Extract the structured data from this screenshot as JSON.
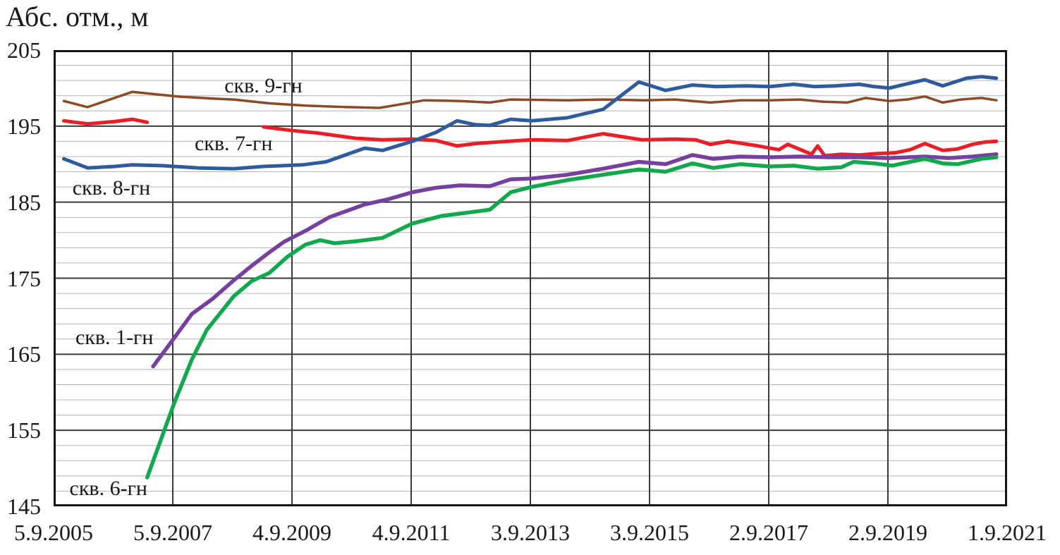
{
  "chart_data": {
    "type": "line",
    "title": "Абс. отм., м",
    "xlabel": "",
    "ylabel": "Абс. отм., м",
    "xlim": [
      2005.68,
      2021.68
    ],
    "ylim": [
      145,
      205
    ],
    "y_ticks": [
      205,
      195,
      185,
      175,
      165,
      155,
      145
    ],
    "y_minor_step": 2,
    "grid": {
      "major_color": "#3a3a3a",
      "minor_color": "#b3b3b3",
      "border_color": "#141414",
      "background": "#ffffff",
      "text_color": "#1a1a1a"
    },
    "x_ticks": [
      {
        "label": "5.9.2005",
        "x": 2005.68
      },
      {
        "label": "5.9.2007",
        "x": 2007.68
      },
      {
        "label": "4.9.2009",
        "x": 2009.68
      },
      {
        "label": "4.9.2011",
        "x": 2011.68
      },
      {
        "label": "3.9.2013",
        "x": 2013.68
      },
      {
        "label": "3.9.2015",
        "x": 2015.68
      },
      {
        "label": "2.9.2017",
        "x": 2017.68
      },
      {
        "label": "2.9.2019",
        "x": 2019.68
      },
      {
        "label": "1.9.2021",
        "x": 2021.68
      }
    ],
    "series": [
      {
        "id": "skv-9-gn",
        "name": "скв. 9-гн",
        "color": "#8C4A26",
        "width": 3.5,
        "label_pos": {
          "x": 2009.2,
          "y": 200.3
        },
        "segments": [
          [
            [
              2005.85,
              198.3
            ],
            [
              2006.25,
              197.5
            ],
            [
              2007.0,
              199.5
            ],
            [
              2007.75,
              198.9
            ],
            [
              2008.4,
              198.6
            ],
            [
              2008.7,
              198.5
            ],
            [
              2009.3,
              198.0
            ],
            [
              2009.9,
              197.7
            ],
            [
              2010.6,
              197.5
            ],
            [
              2011.15,
              197.4
            ],
            [
              2011.9,
              198.4
            ],
            [
              2012.5,
              198.3
            ],
            [
              2013.0,
              198.1
            ],
            [
              2013.35,
              198.5
            ],
            [
              2014.3,
              198.4
            ],
            [
              2014.9,
              198.5
            ],
            [
              2015.6,
              198.4
            ],
            [
              2016.1,
              198.5
            ],
            [
              2016.7,
              198.1
            ],
            [
              2017.2,
              198.4
            ],
            [
              2017.7,
              198.4
            ],
            [
              2018.2,
              198.5
            ],
            [
              2018.6,
              198.2
            ],
            [
              2019.0,
              198.1
            ],
            [
              2019.3,
              198.7
            ],
            [
              2019.7,
              198.3
            ],
            [
              2020.0,
              198.5
            ],
            [
              2020.3,
              198.9
            ],
            [
              2020.6,
              198.1
            ],
            [
              2020.9,
              198.5
            ],
            [
              2021.25,
              198.7
            ],
            [
              2021.5,
              198.4
            ]
          ]
        ]
      },
      {
        "id": "skv-7-gn",
        "name": "скв. 7-гн",
        "color": "#EE1C25",
        "width": 5,
        "label_pos": {
          "x": 2008.7,
          "y": 192.7
        },
        "segments": [
          [
            [
              2005.85,
              195.7
            ],
            [
              2006.25,
              195.3
            ],
            [
              2006.7,
              195.6
            ],
            [
              2007.0,
              195.9
            ],
            [
              2007.25,
              195.5
            ]
          ],
          [
            [
              2009.2,
              194.9
            ],
            [
              2009.7,
              194.4
            ],
            [
              2010.1,
              194.1
            ],
            [
              2010.75,
              193.4
            ],
            [
              2011.2,
              193.2
            ],
            [
              2011.7,
              193.3
            ],
            [
              2012.1,
              193.1
            ],
            [
              2012.45,
              192.4
            ],
            [
              2012.75,
              192.7
            ],
            [
              2013.1,
              192.9
            ],
            [
              2013.7,
              193.2
            ],
            [
              2014.3,
              193.1
            ],
            [
              2014.9,
              194.0
            ],
            [
              2015.55,
              193.2
            ],
            [
              2016.1,
              193.3
            ],
            [
              2016.45,
              193.2
            ],
            [
              2016.7,
              192.6
            ],
            [
              2017.0,
              193.0
            ],
            [
              2017.5,
              192.4
            ],
            [
              2017.85,
              191.9
            ],
            [
              2018.0,
              192.6
            ],
            [
              2018.4,
              191.3
            ],
            [
              2018.5,
              192.4
            ],
            [
              2018.62,
              191.1
            ],
            [
              2018.9,
              191.3
            ],
            [
              2019.2,
              191.2
            ],
            [
              2019.5,
              191.4
            ],
            [
              2019.8,
              191.5
            ],
            [
              2020.05,
              191.9
            ],
            [
              2020.3,
              192.7
            ],
            [
              2020.6,
              191.8
            ],
            [
              2020.85,
              192.0
            ],
            [
              2021.1,
              192.6
            ],
            [
              2021.3,
              192.9
            ],
            [
              2021.5,
              193.0
            ]
          ]
        ]
      },
      {
        "id": "skv-8-gn",
        "name": "скв. 8-гн",
        "color": "#2E5B9E",
        "width": 5,
        "label_pos": {
          "x": 2006.65,
          "y": 186.8
        },
        "segments": [
          [
            [
              2005.85,
              190.7
            ],
            [
              2006.25,
              189.5
            ],
            [
              2006.7,
              189.7
            ],
            [
              2007.0,
              189.9
            ],
            [
              2007.5,
              189.8
            ],
            [
              2008.1,
              189.5
            ],
            [
              2008.7,
              189.4
            ],
            [
              2009.2,
              189.7
            ],
            [
              2009.85,
              189.9
            ],
            [
              2010.25,
              190.3
            ],
            [
              2010.9,
              192.1
            ],
            [
              2011.2,
              191.8
            ],
            [
              2011.7,
              193.0
            ],
            [
              2012.1,
              194.2
            ],
            [
              2012.45,
              195.7
            ],
            [
              2012.75,
              195.2
            ],
            [
              2013.0,
              195.1
            ],
            [
              2013.35,
              195.9
            ],
            [
              2013.7,
              195.7
            ],
            [
              2014.3,
              196.1
            ],
            [
              2014.9,
              197.2
            ],
            [
              2015.5,
              200.8
            ],
            [
              2015.95,
              199.7
            ],
            [
              2016.4,
              200.4
            ],
            [
              2016.8,
              200.2
            ],
            [
              2017.3,
              200.3
            ],
            [
              2017.7,
              200.2
            ],
            [
              2018.1,
              200.5
            ],
            [
              2018.45,
              200.2
            ],
            [
              2018.8,
              200.3
            ],
            [
              2019.2,
              200.5
            ],
            [
              2019.45,
              200.2
            ],
            [
              2019.7,
              200.0
            ],
            [
              2020.3,
              201.1
            ],
            [
              2020.6,
              200.3
            ],
            [
              2021.0,
              201.3
            ],
            [
              2021.25,
              201.5
            ],
            [
              2021.5,
              201.3
            ]
          ]
        ]
      },
      {
        "id": "skv-1-gn",
        "name": "скв. 1-гн",
        "color": "#7640A0",
        "width": 5.5,
        "label_pos": {
          "x": 2006.7,
          "y": 167.2
        },
        "segments": [
          [
            [
              2007.35,
              163.4
            ],
            [
              2007.7,
              167.1
            ],
            [
              2008.0,
              170.3
            ],
            [
              2008.35,
              172.3
            ],
            [
              2008.7,
              174.7
            ],
            [
              2009.0,
              176.6
            ],
            [
              2009.3,
              178.4
            ],
            [
              2009.55,
              179.8
            ],
            [
              2009.9,
              181.2
            ],
            [
              2010.3,
              183.0
            ],
            [
              2010.9,
              184.7
            ],
            [
              2011.3,
              185.4
            ],
            [
              2011.7,
              186.3
            ],
            [
              2012.1,
              186.9
            ],
            [
              2012.5,
              187.2
            ],
            [
              2013.0,
              187.1
            ],
            [
              2013.35,
              188.0
            ],
            [
              2013.7,
              188.1
            ],
            [
              2014.3,
              188.6
            ],
            [
              2014.9,
              189.4
            ],
            [
              2015.5,
              190.3
            ],
            [
              2015.95,
              190.0
            ],
            [
              2016.4,
              191.2
            ],
            [
              2016.75,
              190.7
            ],
            [
              2017.2,
              191.0
            ],
            [
              2017.7,
              190.9
            ],
            [
              2018.2,
              191.0
            ],
            [
              2018.7,
              190.9
            ],
            [
              2019.2,
              190.9
            ],
            [
              2019.7,
              190.8
            ],
            [
              2020.3,
              191.0
            ],
            [
              2020.7,
              190.8
            ],
            [
              2021.1,
              191.0
            ],
            [
              2021.5,
              191.3
            ]
          ]
        ]
      },
      {
        "id": "skv-6-gn",
        "name": "скв. 6-гн",
        "color": "#12A94E",
        "width": 5.5,
        "label_pos": {
          "x": 2006.6,
          "y": 147.3
        },
        "segments": [
          [
            [
              2007.25,
              148.8
            ],
            [
              2007.7,
              158.5
            ],
            [
              2008.0,
              164.3
            ],
            [
              2008.25,
              168.2
            ],
            [
              2008.7,
              172.6
            ],
            [
              2009.0,
              174.6
            ],
            [
              2009.3,
              175.7
            ],
            [
              2009.6,
              177.8
            ],
            [
              2009.9,
              179.4
            ],
            [
              2010.15,
              180.0
            ],
            [
              2010.4,
              179.6
            ],
            [
              2010.8,
              179.9
            ],
            [
              2011.2,
              180.3
            ],
            [
              2011.7,
              182.2
            ],
            [
              2012.2,
              183.2
            ],
            [
              2012.7,
              183.7
            ],
            [
              2013.0,
              184.0
            ],
            [
              2013.35,
              186.3
            ],
            [
              2013.7,
              187.0
            ],
            [
              2014.3,
              187.9
            ],
            [
              2014.9,
              188.6
            ],
            [
              2015.5,
              189.3
            ],
            [
              2015.95,
              189.0
            ],
            [
              2016.4,
              190.1
            ],
            [
              2016.75,
              189.5
            ],
            [
              2017.2,
              190.0
            ],
            [
              2017.7,
              189.7
            ],
            [
              2018.1,
              189.8
            ],
            [
              2018.5,
              189.4
            ],
            [
              2018.9,
              189.6
            ],
            [
              2019.1,
              190.3
            ],
            [
              2019.45,
              190.1
            ],
            [
              2019.75,
              189.8
            ],
            [
              2020.3,
              190.7
            ],
            [
              2020.6,
              190.1
            ],
            [
              2020.85,
              190.0
            ],
            [
              2021.25,
              190.7
            ],
            [
              2021.5,
              190.9
            ]
          ]
        ]
      }
    ]
  }
}
